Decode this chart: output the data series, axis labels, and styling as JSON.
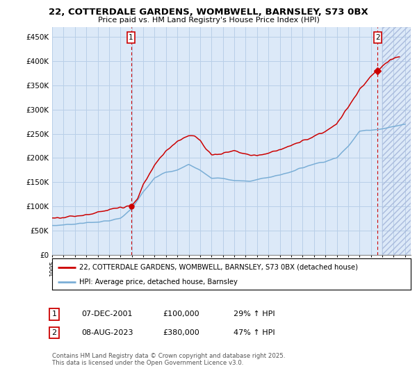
{
  "title": "22, COTTERDALE GARDENS, WOMBWELL, BARNSLEY, S73 0BX",
  "subtitle": "Price paid vs. HM Land Registry's House Price Index (HPI)",
  "ylabel_ticks": [
    "£0",
    "£50K",
    "£100K",
    "£150K",
    "£200K",
    "£250K",
    "£300K",
    "£350K",
    "£400K",
    "£450K"
  ],
  "ytick_values": [
    0,
    50000,
    100000,
    150000,
    200000,
    250000,
    300000,
    350000,
    400000,
    450000
  ],
  "ylim": [
    0,
    470000
  ],
  "xlim_start": 1995.0,
  "xlim_end": 2026.5,
  "background_color": "#ffffff",
  "plot_bg_color": "#dce9f8",
  "grid_color": "#b8cfe8",
  "sale1_x": 2001.93,
  "sale1_y": 100000,
  "sale2_x": 2023.6,
  "sale2_y": 380000,
  "legend_line1": "22, COTTERDALE GARDENS, WOMBWELL, BARNSLEY, S73 0BX (detached house)",
  "legend_line2": "HPI: Average price, detached house, Barnsley",
  "footer": "Contains HM Land Registry data © Crown copyright and database right 2025.\nThis data is licensed under the Open Government Licence v3.0.",
  "red_color": "#cc0000",
  "blue_color": "#7aaed6",
  "table_row1": [
    "1",
    "07-DEC-2001",
    "£100,000",
    "29% ↑ HPI"
  ],
  "table_row2": [
    "2",
    "08-AUG-2023",
    "£380,000",
    "47% ↑ HPI"
  ]
}
